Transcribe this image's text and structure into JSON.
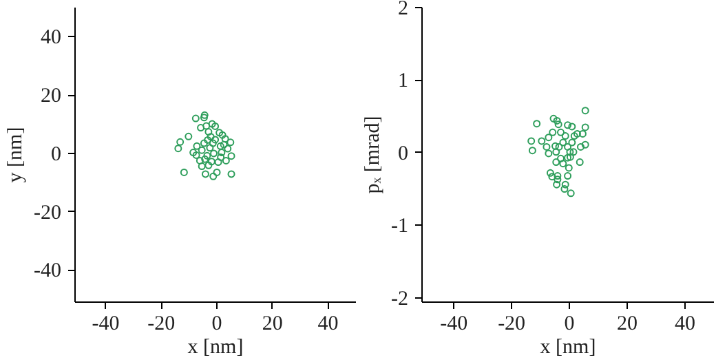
{
  "chart_data": [
    {
      "type": "scatter",
      "xlabel": "x [nm]",
      "ylabel": "y [nm]",
      "xlim": [
        -51,
        50
      ],
      "ylim": [
        -51,
        50
      ],
      "xticks": [
        -40,
        -20,
        0,
        20,
        40
      ],
      "yticks": [
        -40,
        -20,
        0,
        20,
        40
      ],
      "marker": "circle",
      "grid": false,
      "series": [
        {
          "color": "#2e9e5b",
          "x": [
            -4.4,
            -4.6,
            -7.6,
            -10.2,
            -13.2,
            -13.9,
            -11.8,
            -8.5,
            -7.4,
            -7.2,
            -5.8,
            -3.8,
            -1.7,
            -0.6,
            0.9,
            2,
            3,
            4.9,
            3.9,
            5.2,
            3.3,
            5.2,
            0,
            -1.3,
            -4.1,
            -5.4,
            -3,
            -1.9,
            0.5,
            1.7,
            1.3,
            -0.6,
            -2.2,
            -3.3,
            -4.6,
            -5.4,
            -4.3,
            -1.1,
            -2.5,
            -3,
            -1.4,
            2.5,
            -6.1,
            -3.5,
            1.4
          ],
          "values": [
            13.1,
            12.3,
            12,
            5.8,
            3.9,
            1.7,
            -6.5,
            0.3,
            -0.6,
            2.5,
            8.8,
            9.4,
            10.1,
            9.3,
            7.1,
            6.3,
            5,
            3.8,
            1.6,
            -0.9,
            -2.5,
            -7.1,
            -6.5,
            -7.9,
            -7.1,
            -4.4,
            -4.1,
            -2.8,
            -3,
            0.3,
            2.5,
            4.7,
            5.7,
            4.6,
            3.5,
            1.1,
            -2,
            0,
            1.9,
            7.4,
            3.5,
            3,
            -2.5,
            -0.8,
            -1.3
          ]
        }
      ]
    },
    {
      "type": "scatter",
      "xlabel": "x [nm]",
      "ylabel": "pₓ [mrad]",
      "xlim": [
        -51,
        50
      ],
      "ylim": [
        -2.06,
        2
      ],
      "xticks": [
        -40,
        -20,
        0,
        20,
        40
      ],
      "yticks": [
        -2,
        -1,
        0,
        1,
        2
      ],
      "marker": "circle",
      "grid": false,
      "series": [
        {
          "color": "#2e9e5b",
          "x": [
            5.5,
            -11.3,
            -5.5,
            -4.3,
            -3.8,
            -13.2,
            -12.8,
            -9.6,
            -7.9,
            -7.2,
            -7.2,
            -5.8,
            -3,
            -0.6,
            0.9,
            2.7,
            4.6,
            5.5,
            5.5,
            3.9,
            3.6,
            0.3,
            -0.2,
            -0.6,
            0.5,
            -1.7,
            -1.4,
            -4.1,
            -4.1,
            -6.6,
            -6,
            -4.4,
            -4.6,
            -3,
            -0.6,
            0.9,
            1.7,
            -2.2,
            -3.6,
            -4.6,
            -1.4,
            0.2,
            1.4,
            -2.2,
            -4.9,
            -0.6
          ],
          "values": [
            0.58,
            0.4,
            0.47,
            0.44,
            0.39,
            0.16,
            0.03,
            0.16,
            0.08,
            0.21,
            -0.01,
            0.28,
            0.28,
            0.38,
            0.36,
            0.26,
            0.26,
            0.35,
            0.11,
            0.08,
            -0.13,
            -0.06,
            -0.21,
            -0.32,
            -0.56,
            -0.5,
            -0.44,
            -0.37,
            -0.32,
            -0.28,
            -0.33,
            -0.44,
            -0.13,
            -0.08,
            0.08,
            0.14,
            0.23,
            0.14,
            0.08,
            0.01,
            0.23,
            0.01,
            0.01,
            -0.15,
            0.09,
            -0.07
          ]
        }
      ]
    }
  ]
}
